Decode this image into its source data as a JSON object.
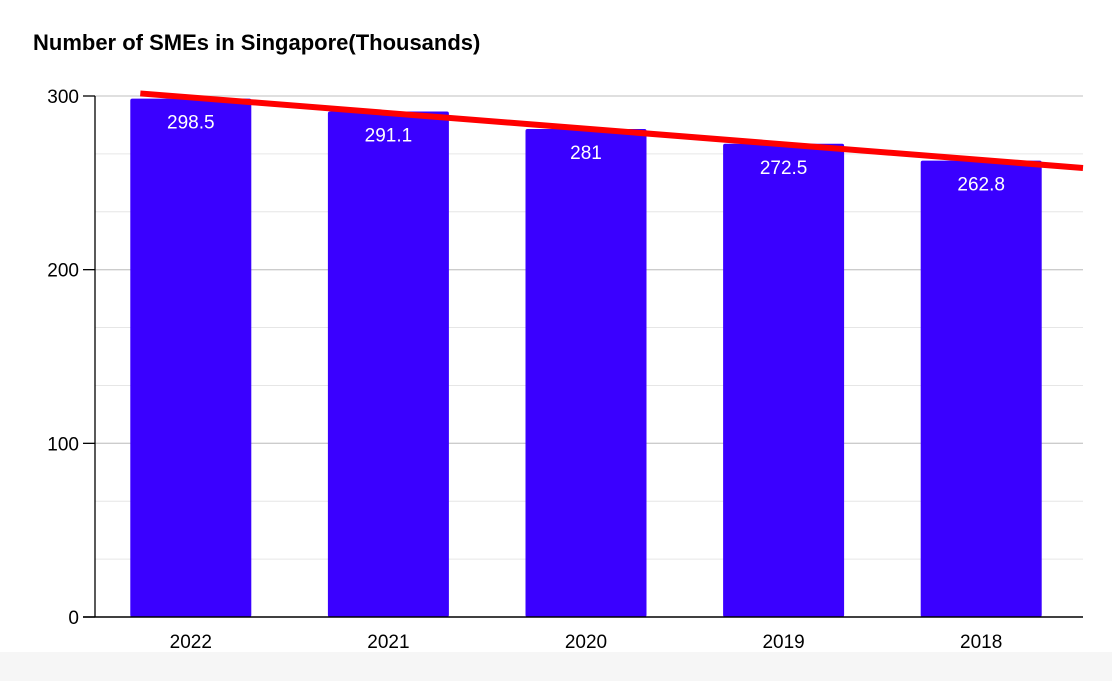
{
  "chart_data": {
    "type": "bar",
    "title": "Number of SMEs in Singapore(Thousands)",
    "categories": [
      "2022",
      "2021",
      "2020",
      "2019",
      "2018"
    ],
    "values": [
      298.5,
      291.1,
      281,
      272.5,
      262.8
    ],
    "value_labels": [
      "298.5",
      "291.1",
      "281",
      "272.5",
      "262.8"
    ],
    "yticks": [
      "0",
      "100",
      "200",
      "300"
    ],
    "ylim": [
      0,
      300
    ],
    "xlabel": "",
    "ylabel": "",
    "grid": true,
    "trendline": {
      "type": "linear",
      "color": "#ff0000"
    },
    "colors": {
      "bar": "#3a00ff",
      "trendline": "#ff0000",
      "grid_major": "#cccccc",
      "grid_minor": "#e6e6e6",
      "axis": "#000000",
      "value_label": "#ffffff"
    }
  }
}
